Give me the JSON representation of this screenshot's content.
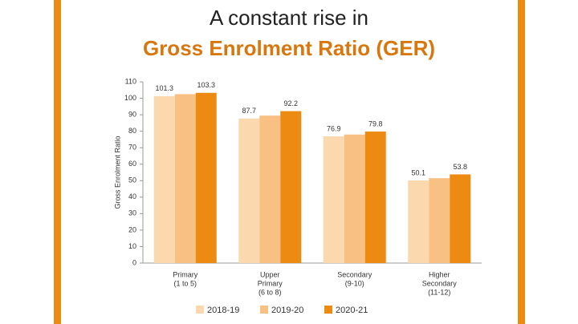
{
  "chart_data": {
    "type": "bar",
    "title": "A constant rise in",
    "subtitle": "Gross Enrolment Ratio (GER)",
    "y_label": "Gross Enrolment Ratio",
    "categories": [
      [
        "Primary",
        "(1 to 5)"
      ],
      [
        "Upper",
        "Primary",
        "(6 to 8)"
      ],
      [
        "Secondary",
        "(9-10)"
      ],
      [
        "Higher",
        "Secondary",
        "(11-12)"
      ]
    ],
    "series": [
      {
        "name": "2018-19",
        "color": "#fbd8ae",
        "values": [
          101.3,
          87.7,
          76.9,
          50.1
        ],
        "labels": true
      },
      {
        "name": "2019-20",
        "color": "#f8c183",
        "values": [
          102.5,
          89.5,
          78,
          51.5
        ],
        "labels": false
      },
      {
        "name": "2020-21",
        "color": "#ec8a12",
        "values": [
          103.3,
          92.2,
          79.8,
          53.8
        ],
        "labels": true
      }
    ],
    "ylim": [
      0,
      110
    ],
    "yticks": [
      0,
      10,
      20,
      30,
      40,
      50,
      60,
      70,
      80,
      90,
      100,
      110
    ],
    "grid": false,
    "legend": "bottom"
  }
}
